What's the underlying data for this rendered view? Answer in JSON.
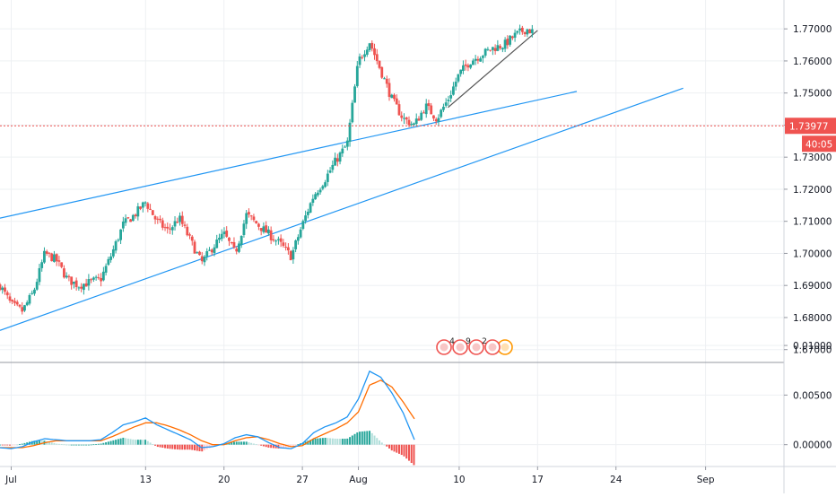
{
  "chart_data": [
    {
      "type": "candlestick",
      "panel": "price",
      "y_ticks": [
        "1.67000",
        "1.68000",
        "1.69000",
        "1.70000",
        "1.71000",
        "1.72000",
        "1.73000",
        "1.74000",
        "1.75000",
        "1.76000",
        "1.77000"
      ],
      "y_tick_values": [
        1.67,
        1.68,
        1.69,
        1.7,
        1.71,
        1.72,
        1.73,
        1.74,
        1.75,
        1.76,
        1.77
      ],
      "ylim": [
        1.666,
        1.779
      ],
      "x_ticks": [
        "Jul",
        "13",
        "20",
        "27",
        "Aug",
        "10",
        "17",
        "24",
        "Sep"
      ],
      "x_tick_days": [
        0,
        12,
        19,
        26,
        31,
        40,
        47,
        54,
        62
      ],
      "xlim_days": [
        -1.0,
        69.0
      ],
      "x_unit": "days since Jul 1",
      "current_price": {
        "label": "1.73977",
        "value": 1.73977,
        "color": "#ef5350"
      },
      "countdown": {
        "label": "40:05"
      },
      "close_path": [
        [
          -1.0,
          1.69
        ],
        [
          0.0,
          1.684
        ],
        [
          1.0,
          1.682
        ],
        [
          2.0,
          1.688
        ],
        [
          3.0,
          1.7
        ],
        [
          4.0,
          1.698
        ],
        [
          5.0,
          1.692
        ],
        [
          6.0,
          1.69
        ],
        [
          7.0,
          1.691
        ],
        [
          8.0,
          1.692
        ],
        [
          9.0,
          1.7
        ],
        [
          10.0,
          1.709
        ],
        [
          11.0,
          1.712
        ],
        [
          12.0,
          1.716
        ],
        [
          13.0,
          1.71
        ],
        [
          14.0,
          1.707
        ],
        [
          15.0,
          1.711
        ],
        [
          16.0,
          1.704
        ],
        [
          17.0,
          1.697
        ],
        [
          18.0,
          1.702
        ],
        [
          19.0,
          1.706
        ],
        [
          20.0,
          1.7
        ],
        [
          21.0,
          1.712
        ],
        [
          22.0,
          1.709
        ],
        [
          23.0,
          1.706
        ],
        [
          24.0,
          1.703
        ],
        [
          25.0,
          1.699
        ],
        [
          26.0,
          1.709
        ],
        [
          27.0,
          1.718
        ],
        [
          28.0,
          1.723
        ],
        [
          29.0,
          1.729
        ],
        [
          30.0,
          1.734
        ],
        [
          31.0,
          1.76
        ],
        [
          32.0,
          1.766
        ],
        [
          33.0,
          1.757
        ],
        [
          34.0,
          1.748
        ],
        [
          35.0,
          1.742
        ],
        [
          36.0,
          1.74
        ],
        [
          37.0,
          1.746
        ],
        [
          38.0,
          1.742
        ],
        [
          39.0,
          1.748
        ],
        [
          40.0,
          1.756
        ],
        [
          41.0,
          1.76
        ],
        [
          42.0,
          1.762
        ],
        [
          43.0,
          1.764
        ],
        [
          44.0,
          1.765
        ],
        [
          45.0,
          1.768
        ],
        [
          46.0,
          1.77
        ],
        [
          46.6,
          1.769
        ]
      ],
      "trendlines": [
        {
          "from": [
            -1.0,
            1.711
          ],
          "to": [
            50.5,
            1.7505
          ],
          "color": "#2196f3"
        },
        {
          "from": [
            -1.0,
            1.676
          ],
          "to": [
            60.0,
            1.7515
          ],
          "color": "#2196f3"
        },
        {
          "from": [
            39.0,
            1.7455
          ],
          "to": [
            47.0,
            1.7695
          ],
          "color": "#555555"
        }
      ],
      "event_markers": [
        "4",
        "9",
        "2"
      ],
      "up_color": "#26a69a",
      "down_color": "#ef5350"
    },
    {
      "type": "macd",
      "panel": "indicator",
      "y_ticks": [
        "0.01000",
        "0.00500",
        "0.00000"
      ],
      "y_tick_values": [
        0.01,
        0.005,
        0.0
      ],
      "ylim": [
        -0.0022,
        0.0082
      ],
      "macd_color": "#2196f3",
      "signal_color": "#ff6d00",
      "hist_up_color": "#26a69a",
      "hist_down_color": "#ef5350",
      "macd": [
        [
          -1.0,
          -0.0003
        ],
        [
          0.0,
          -0.0004
        ],
        [
          1.0,
          -0.0002
        ],
        [
          2.0,
          0.0003
        ],
        [
          3.0,
          0.0006
        ],
        [
          4.0,
          0.0005
        ],
        [
          5.0,
          0.0004
        ],
        [
          6.0,
          0.0004
        ],
        [
          7.0,
          0.0004
        ],
        [
          8.0,
          0.0005
        ],
        [
          9.0,
          0.0012
        ],
        [
          10.0,
          0.002
        ],
        [
          11.0,
          0.0023
        ],
        [
          12.0,
          0.0027
        ],
        [
          13.0,
          0.002
        ],
        [
          14.0,
          0.0015
        ],
        [
          15.0,
          0.001
        ],
        [
          16.0,
          0.0005
        ],
        [
          17.0,
          -0.0003
        ],
        [
          18.0,
          -0.0002
        ],
        [
          19.0,
          0.0001
        ],
        [
          20.0,
          0.0007
        ],
        [
          21.0,
          0.001
        ],
        [
          22.0,
          0.0008
        ],
        [
          23.0,
          0.0002
        ],
        [
          24.0,
          -0.0003
        ],
        [
          25.0,
          -0.0004
        ],
        [
          26.0,
          0.0001
        ],
        [
          27.0,
          0.0012
        ],
        [
          28.0,
          0.0018
        ],
        [
          29.0,
          0.0022
        ],
        [
          30.0,
          0.0028
        ],
        [
          31.0,
          0.0046
        ],
        [
          32.0,
          0.0074
        ],
        [
          33.0,
          0.0068
        ],
        [
          34.0,
          0.0052
        ],
        [
          35.0,
          0.0032
        ],
        [
          36.0,
          0.0005
        ]
      ],
      "signal": [
        [
          -1.0,
          -0.0003
        ],
        [
          0.0,
          -0.0003
        ],
        [
          1.0,
          -0.0003
        ],
        [
          2.0,
          -0.0001
        ],
        [
          3.0,
          0.0002
        ],
        [
          4.0,
          0.0004
        ],
        [
          5.0,
          0.0004
        ],
        [
          6.0,
          0.0004
        ],
        [
          7.0,
          0.0004
        ],
        [
          8.0,
          0.0004
        ],
        [
          9.0,
          0.0008
        ],
        [
          10.0,
          0.0013
        ],
        [
          11.0,
          0.0018
        ],
        [
          12.0,
          0.0022
        ],
        [
          13.0,
          0.0022
        ],
        [
          14.0,
          0.0019
        ],
        [
          15.0,
          0.0015
        ],
        [
          16.0,
          0.001
        ],
        [
          17.0,
          0.0004
        ],
        [
          18.0,
          0.0
        ],
        [
          19.0,
          0.0
        ],
        [
          20.0,
          0.0004
        ],
        [
          21.0,
          0.0007
        ],
        [
          22.0,
          0.0008
        ],
        [
          23.0,
          0.0005
        ],
        [
          24.0,
          0.0001
        ],
        [
          25.0,
          -0.0002
        ],
        [
          26.0,
          -0.0001
        ],
        [
          27.0,
          0.0006
        ],
        [
          28.0,
          0.0011
        ],
        [
          29.0,
          0.0016
        ],
        [
          30.0,
          0.0022
        ],
        [
          31.0,
          0.0033
        ],
        [
          32.0,
          0.006
        ],
        [
          33.0,
          0.0065
        ],
        [
          34.0,
          0.0058
        ],
        [
          35.0,
          0.0043
        ],
        [
          36.0,
          0.0026
        ]
      ]
    }
  ]
}
